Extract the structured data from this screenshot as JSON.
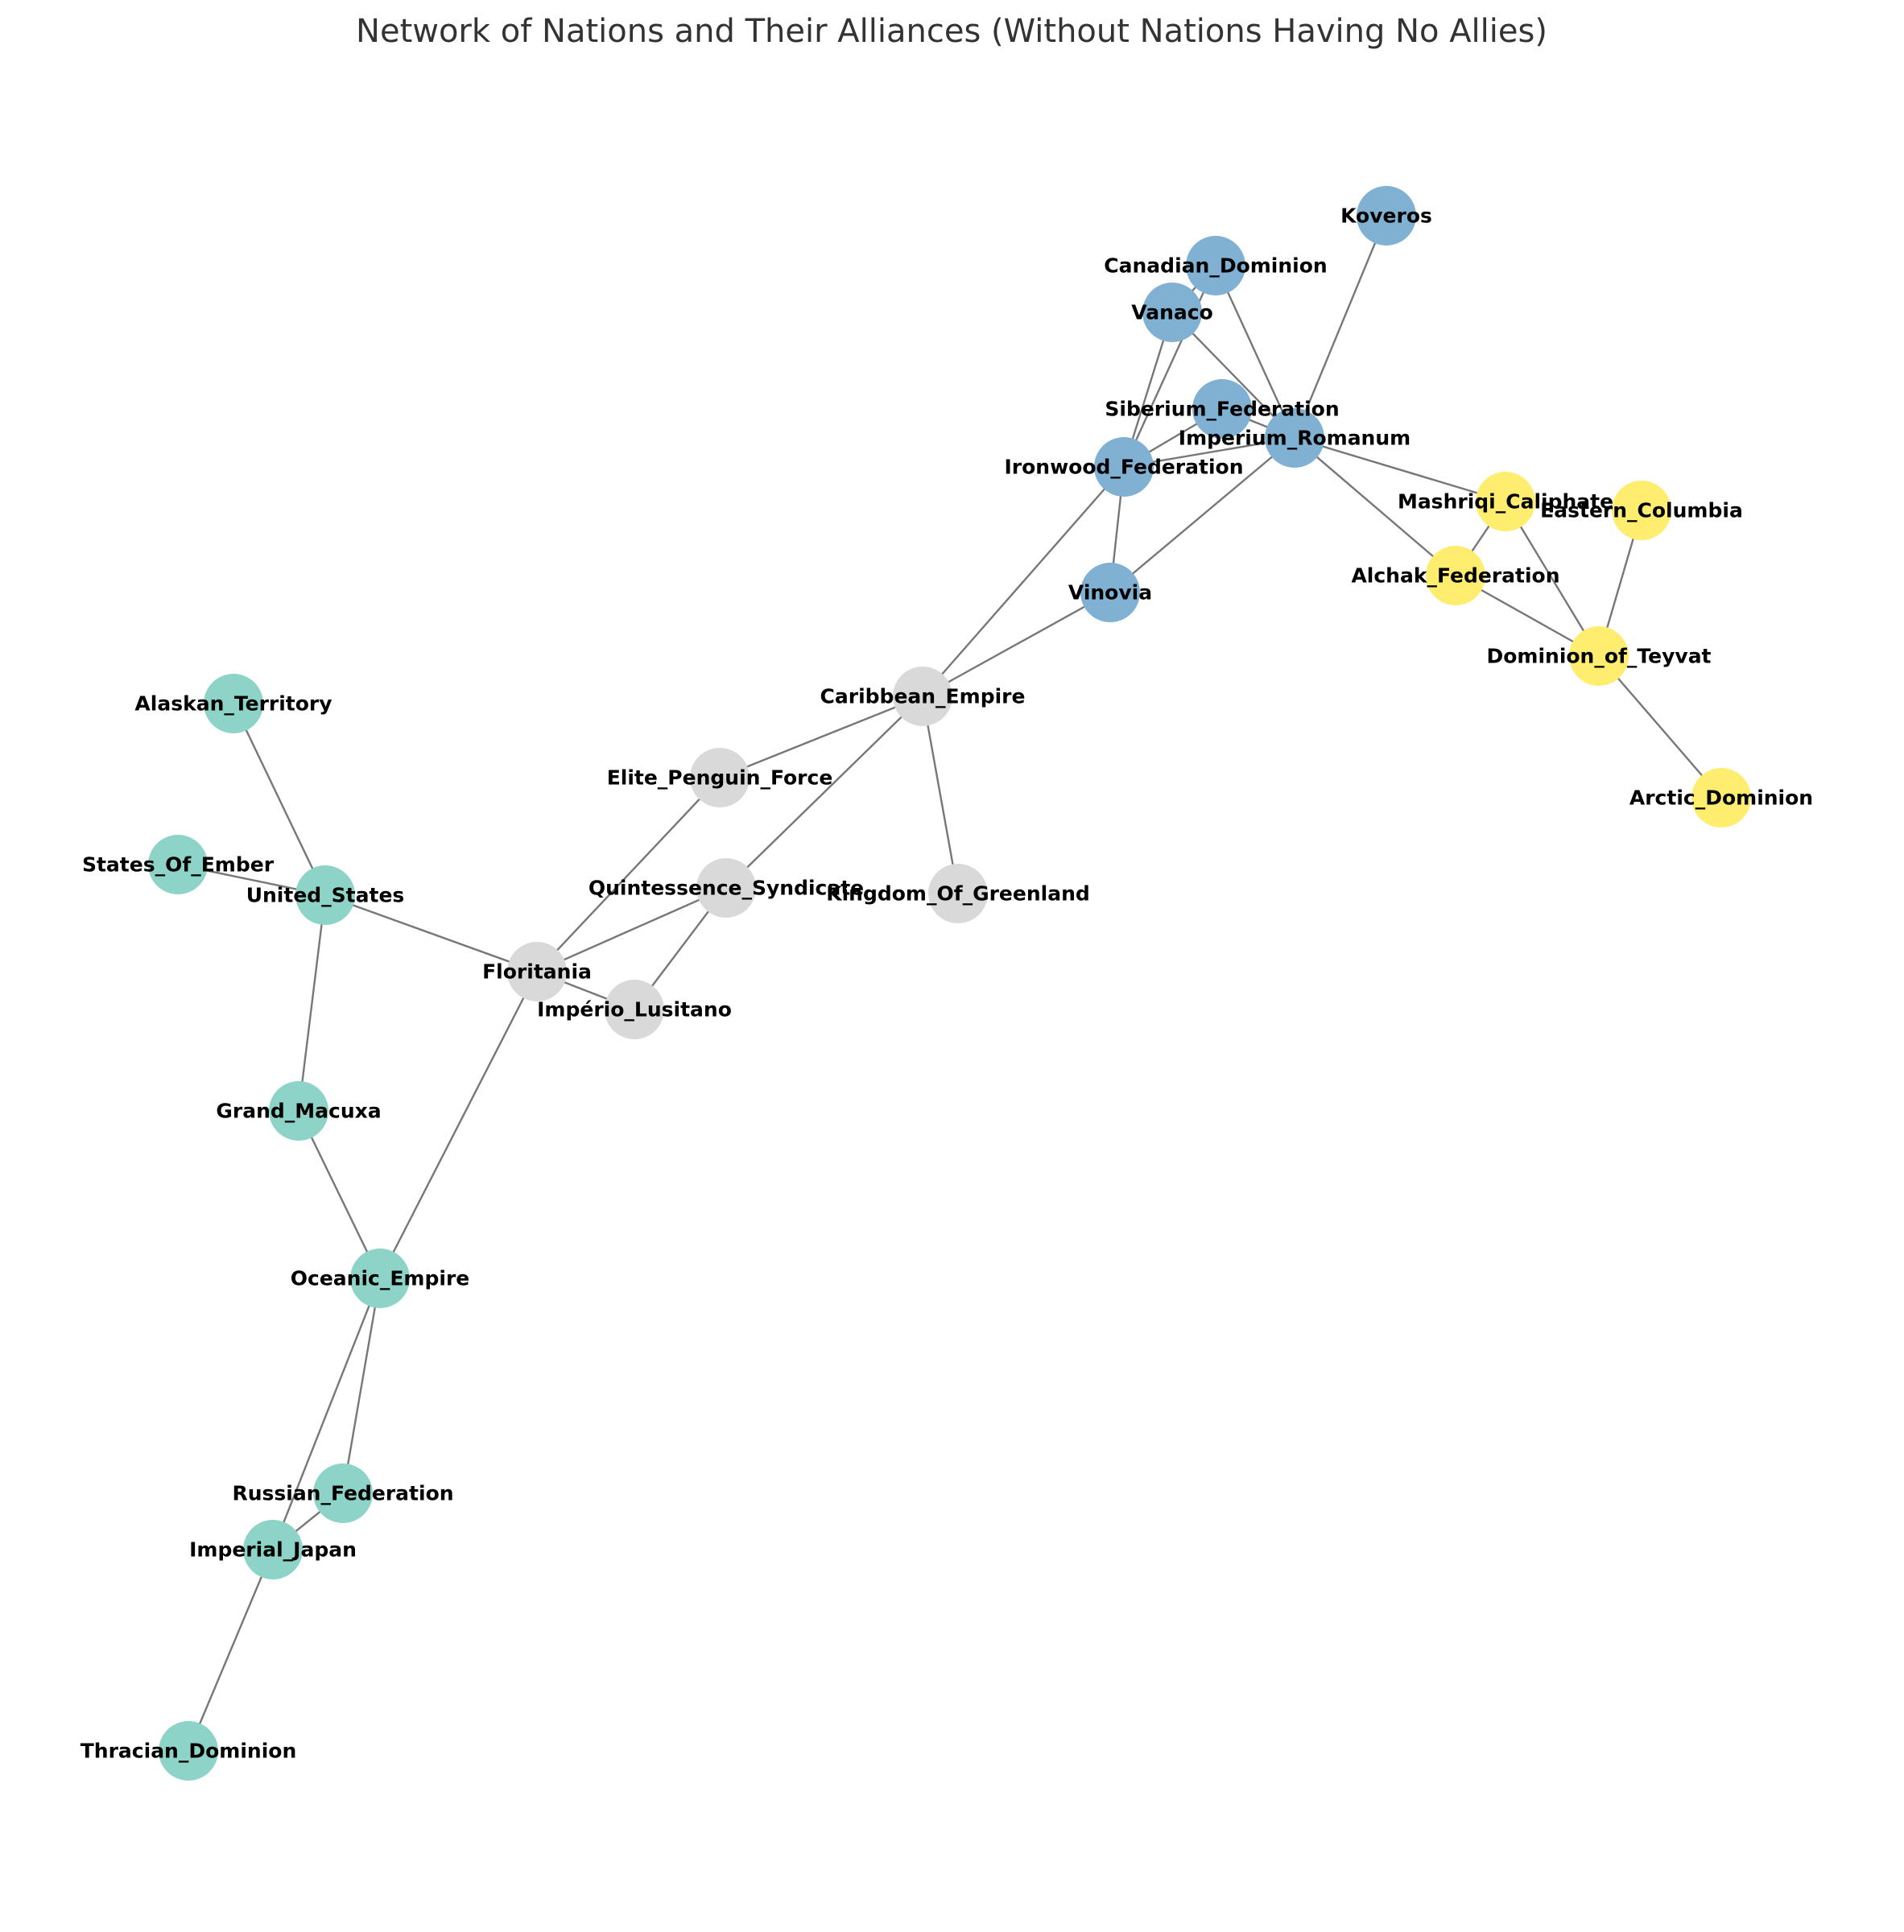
{
  "title": "Network of Nations and Their Alliances (Without Nations Having No Allies)",
  "palette": {
    "teal": "#8dd3c7",
    "grey": "#d9d9d9",
    "blue": "#80b1d3",
    "yellow": "#ffed6f",
    "edge": "#777777"
  },
  "nodes": [
    {
      "id": "Koveros",
      "label": "Koveros",
      "group": "blue"
    },
    {
      "id": "Canadian_Dominion",
      "label": "Canadian_Dominion",
      "group": "blue"
    },
    {
      "id": "Vanaco",
      "label": "Vanaco",
      "group": "blue"
    },
    {
      "id": "Siberium_Federation",
      "label": "Siberium_Federation",
      "group": "blue"
    },
    {
      "id": "Imperium_Romanum",
      "label": "Imperium_Romanum",
      "group": "blue"
    },
    {
      "id": "Ironwood_Federation",
      "label": "Ironwood_Federation",
      "group": "blue"
    },
    {
      "id": "Vinovia",
      "label": "Vinovia",
      "group": "blue"
    },
    {
      "id": "Mashriqi_Caliphate",
      "label": "Mashriqi_Caliphate",
      "group": "yellow"
    },
    {
      "id": "Eastern_Columbia",
      "label": "Eastern_Columbia",
      "group": "yellow"
    },
    {
      "id": "Alchak_Federation",
      "label": "Alchak_Federation",
      "group": "yellow"
    },
    {
      "id": "Dominion_of_Teyvat",
      "label": "Dominion_of_Teyvat",
      "group": "yellow"
    },
    {
      "id": "Arctic_Dominion",
      "label": "Arctic_Dominion",
      "group": "yellow"
    },
    {
      "id": "Caribbean_Empire",
      "label": "Caribbean_Empire",
      "group": "grey"
    },
    {
      "id": "Elite_Penguin_Force",
      "label": "Elite_Penguin_Force",
      "group": "grey"
    },
    {
      "id": "Quintessence_Syndicate",
      "label": "Quintessence_Syndicate",
      "group": "grey"
    },
    {
      "id": "Kingdom_Of_Greenland",
      "label": "Kingdom_Of_Greenland",
      "group": "grey"
    },
    {
      "id": "Floritania",
      "label": "Floritania",
      "group": "grey"
    },
    {
      "id": "Imperio_Lusitano",
      "label": "Império_Lusitano",
      "group": "grey"
    },
    {
      "id": "Alaskan_Territory",
      "label": "Alaskan_Territory",
      "group": "teal"
    },
    {
      "id": "States_Of_Ember",
      "label": "States_Of_Ember",
      "group": "teal"
    },
    {
      "id": "United_States",
      "label": "United_States",
      "group": "teal"
    },
    {
      "id": "Grand_Macuxa",
      "label": "Grand_Macuxa",
      "group": "teal"
    },
    {
      "id": "Oceanic_Empire",
      "label": "Oceanic_Empire",
      "group": "teal"
    },
    {
      "id": "Russian_Federation",
      "label": "Russian_Federation",
      "group": "teal"
    },
    {
      "id": "Imperial_Japan",
      "label": "Imperial_Japan",
      "group": "teal"
    },
    {
      "id": "Thracian_Dominion",
      "label": "Thracian_Dominion",
      "group": "teal"
    }
  ],
  "edges": [
    [
      "Koveros",
      "Imperium_Romanum"
    ],
    [
      "Canadian_Dominion",
      "Imperium_Romanum"
    ],
    [
      "Canadian_Dominion",
      "Vanaco"
    ],
    [
      "Vanaco",
      "Imperium_Romanum"
    ],
    [
      "Vanaco",
      "Ironwood_Federation"
    ],
    [
      "Canadian_Dominion",
      "Ironwood_Federation"
    ],
    [
      "Siberium_Federation",
      "Imperium_Romanum"
    ],
    [
      "Siberium_Federation",
      "Ironwood_Federation"
    ],
    [
      "Ironwood_Federation",
      "Imperium_Romanum"
    ],
    [
      "Ironwood_Federation",
      "Vinovia"
    ],
    [
      "Vinovia",
      "Imperium_Romanum"
    ],
    [
      "Imperium_Romanum",
      "Mashriqi_Caliphate"
    ],
    [
      "Imperium_Romanum",
      "Alchak_Federation"
    ],
    [
      "Mashriqi_Caliphate",
      "Alchak_Federation"
    ],
    [
      "Mashriqi_Caliphate",
      "Dominion_of_Teyvat"
    ],
    [
      "Eastern_Columbia",
      "Dominion_of_Teyvat"
    ],
    [
      "Alchak_Federation",
      "Dominion_of_Teyvat"
    ],
    [
      "Dominion_of_Teyvat",
      "Arctic_Dominion"
    ],
    [
      "Ironwood_Federation",
      "Caribbean_Empire"
    ],
    [
      "Vinovia",
      "Caribbean_Empire"
    ],
    [
      "Caribbean_Empire",
      "Elite_Penguin_Force"
    ],
    [
      "Caribbean_Empire",
      "Quintessence_Syndicate"
    ],
    [
      "Caribbean_Empire",
      "Kingdom_Of_Greenland"
    ],
    [
      "Elite_Penguin_Force",
      "Floritania"
    ],
    [
      "Quintessence_Syndicate",
      "Floritania"
    ],
    [
      "Quintessence_Syndicate",
      "Imperio_Lusitano"
    ],
    [
      "Floritania",
      "Imperio_Lusitano"
    ],
    [
      "Floritania",
      "United_States"
    ],
    [
      "Floritania",
      "Oceanic_Empire"
    ],
    [
      "Alaskan_Territory",
      "United_States"
    ],
    [
      "States_Of_Ember",
      "United_States"
    ],
    [
      "United_States",
      "Grand_Macuxa"
    ],
    [
      "Grand_Macuxa",
      "Oceanic_Empire"
    ],
    [
      "Oceanic_Empire",
      "Russian_Federation"
    ],
    [
      "Oceanic_Empire",
      "Imperial_Japan"
    ],
    [
      "Russian_Federation",
      "Imperial_Japan"
    ],
    [
      "Imperial_Japan",
      "Thracian_Dominion"
    ]
  ]
}
